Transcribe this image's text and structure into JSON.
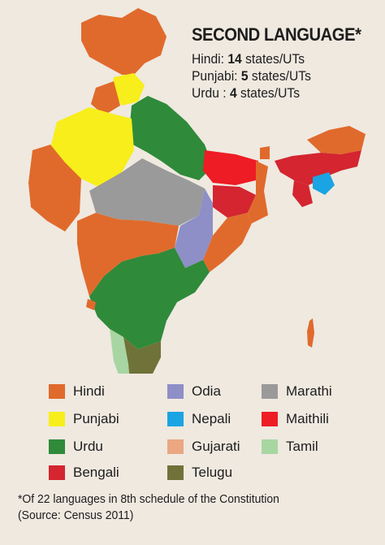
{
  "title": "SECOND LANGUAGE*",
  "stats": [
    {
      "language": "Hindi",
      "sep": ": ",
      "count": "14",
      "unit": " states/UTs"
    },
    {
      "language": "Punjabi",
      "sep": ": ",
      "count": "5",
      "unit": " states/UTs"
    },
    {
      "language": "Urdu",
      "sep": " : ",
      "count": "4",
      "unit": " states/UTs"
    }
  ],
  "legend": [
    {
      "label": "Hindi",
      "color": "#e06a2c"
    },
    {
      "label": "Punjabi",
      "color": "#f7ee1b"
    },
    {
      "label": "Urdu",
      "color": "#2f8a3a"
    },
    {
      "label": "Bengali",
      "color": "#d42530"
    },
    {
      "label": "Odia",
      "color": "#8e8fc7"
    },
    {
      "label": "Nepali",
      "color": "#1aa4e3"
    },
    {
      "label": "Gujarati",
      "color": "#eaa782"
    },
    {
      "label": "Telugu",
      "color": "#6f7339"
    },
    {
      "label": "Marathi",
      "color": "#9a9a9a"
    },
    {
      "label": "Maithili",
      "color": "#ee1c24"
    },
    {
      "label": "Tamil",
      "color": "#a8d6a2"
    }
  ],
  "footnote": {
    "line1": "*Of 22 languages in 8th schedule of the Constitution",
    "line2": "(Source: Census 2011)"
  }
}
